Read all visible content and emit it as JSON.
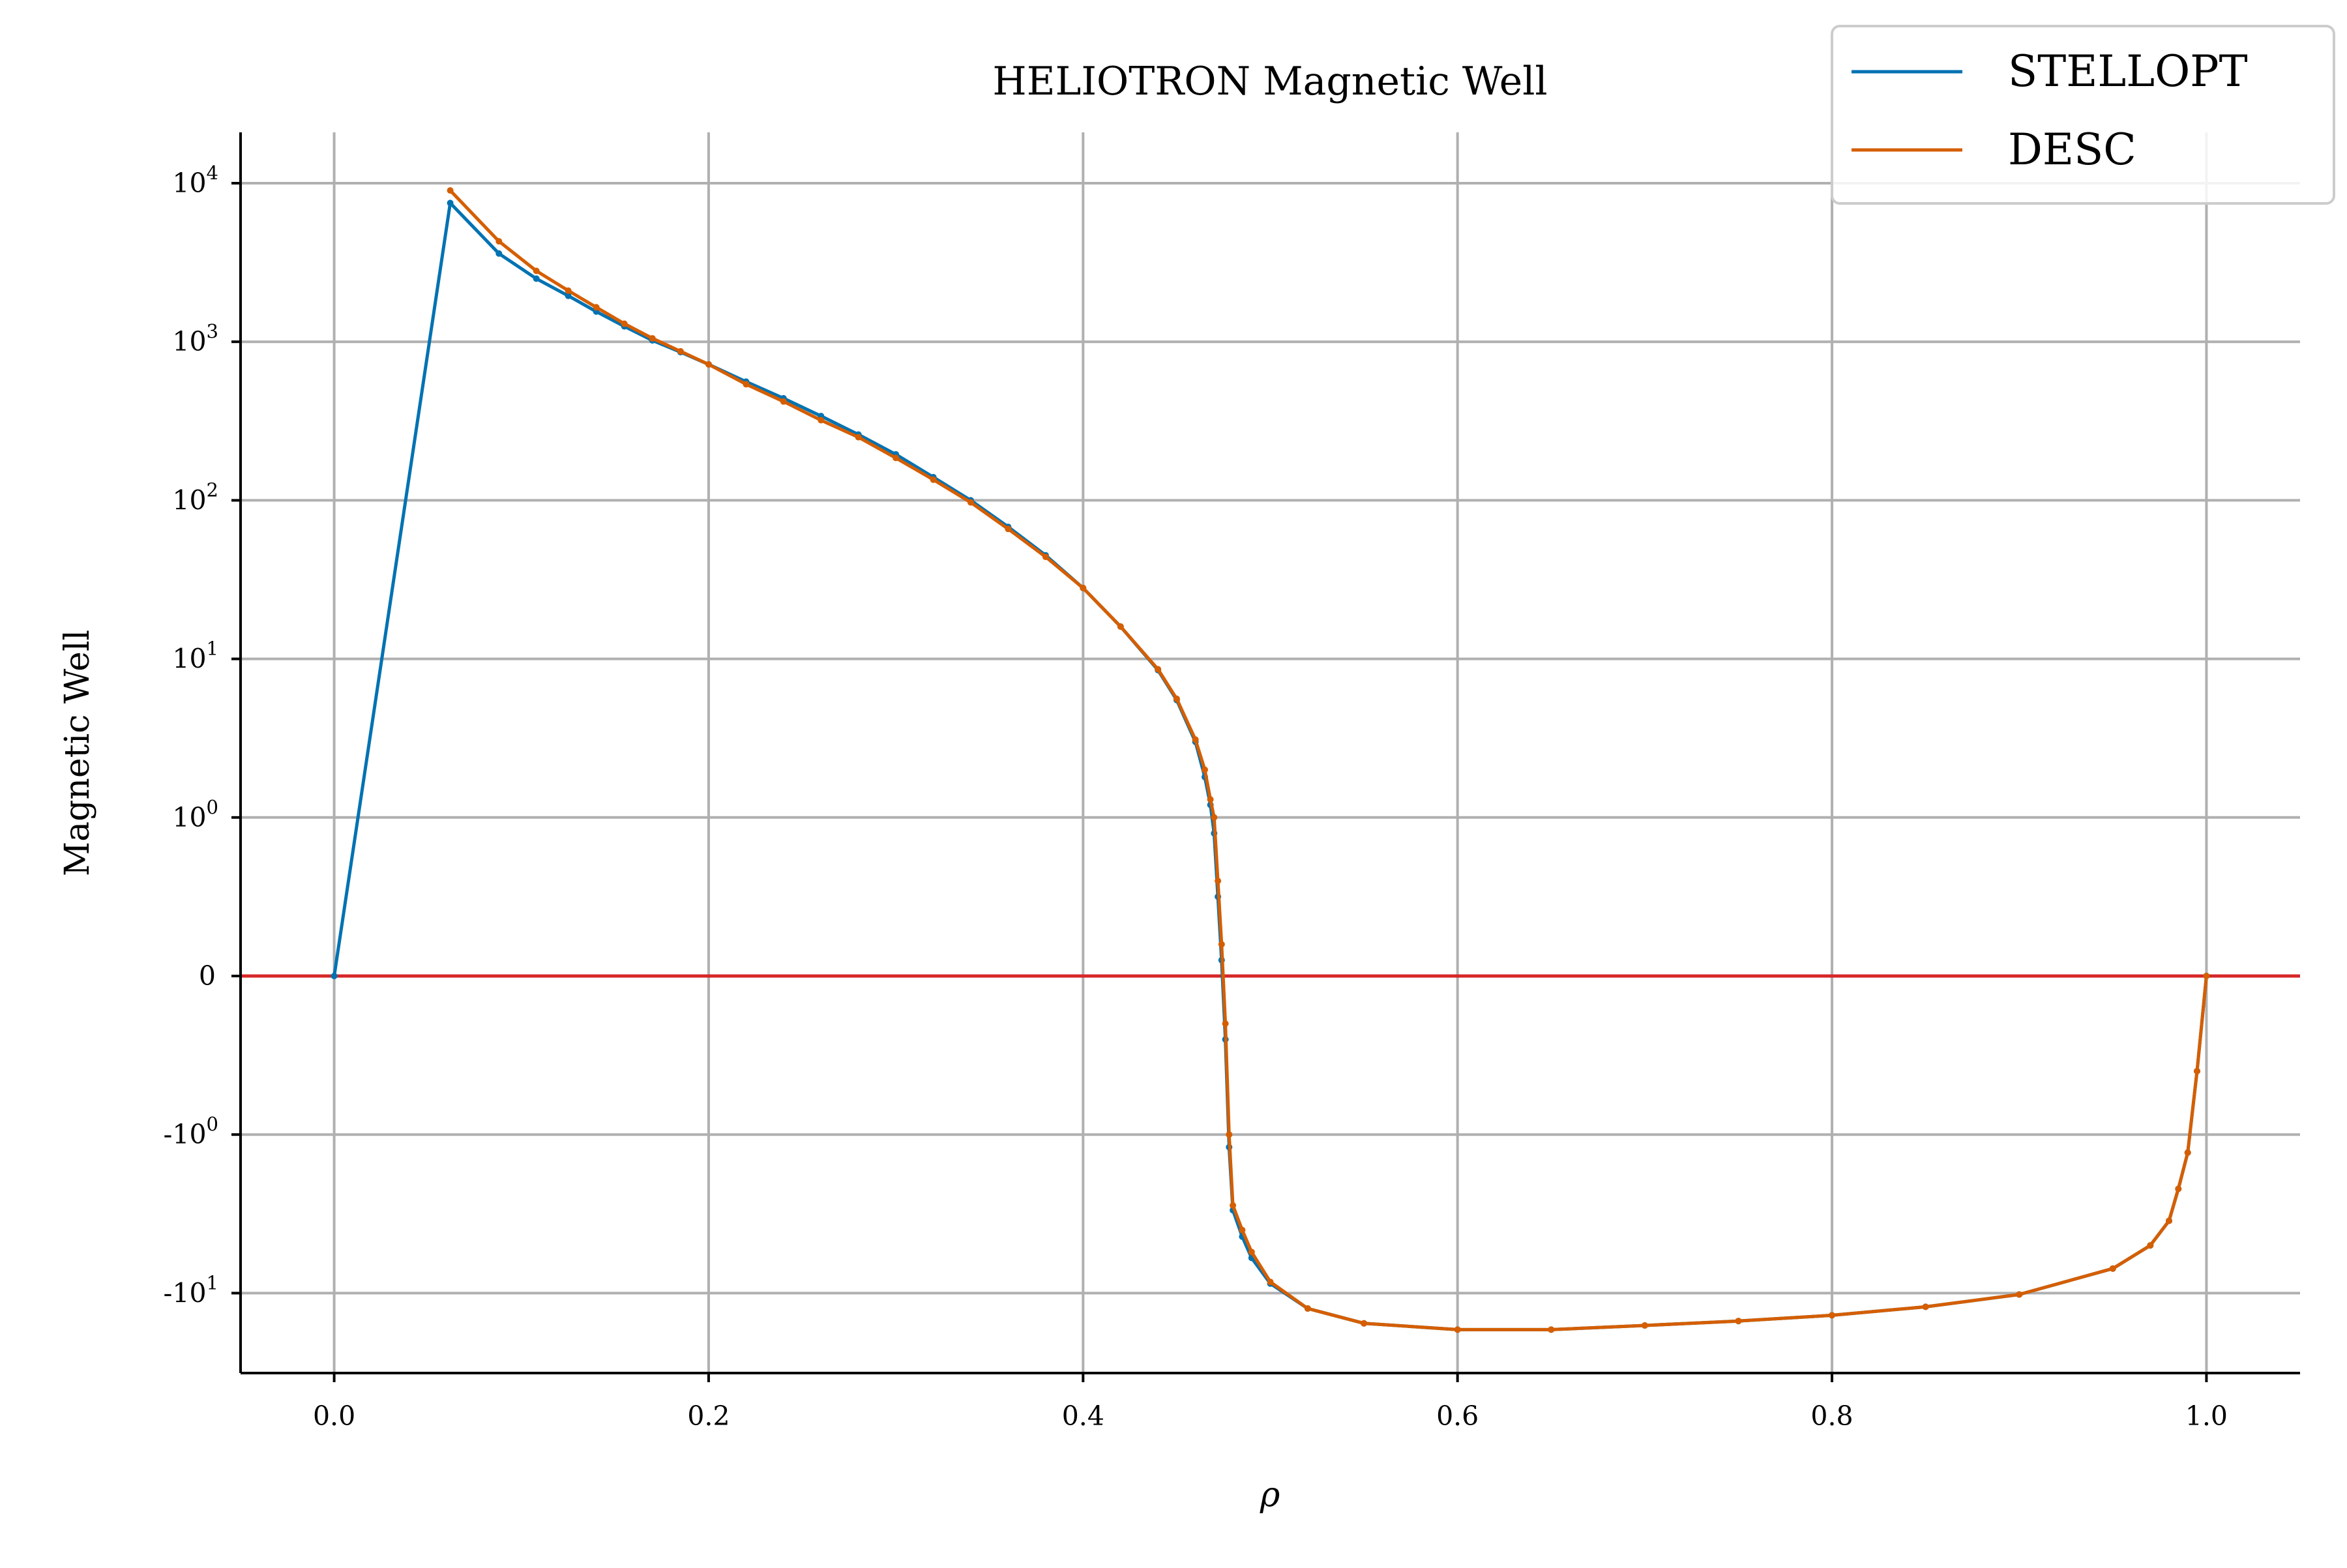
{
  "chart_data": {
    "type": "line",
    "title": "HELIOTRON Magnetic Well",
    "xlabel": "ρ",
    "ylabel": "Magnetic Well",
    "xlim": [
      -0.05,
      1.05
    ],
    "yscale": "symlog",
    "symlog_linthresh": 1,
    "grid": true,
    "legend_position": "top-right",
    "x_ticks": [
      {
        "value": 0.0,
        "label": "0.0"
      },
      {
        "value": 0.2,
        "label": "0.2"
      },
      {
        "value": 0.4,
        "label": "0.4"
      },
      {
        "value": 0.6,
        "label": "0.6"
      },
      {
        "value": 0.8,
        "label": "0.8"
      },
      {
        "value": 1.0,
        "label": "1.0"
      }
    ],
    "y_ticks": [
      {
        "value": 10000,
        "base": "10",
        "exp": "4"
      },
      {
        "value": 1000,
        "base": "10",
        "exp": "3"
      },
      {
        "value": 100,
        "base": "10",
        "exp": "2"
      },
      {
        "value": 10,
        "base": "10",
        "exp": "1"
      },
      {
        "value": 1,
        "base": "10",
        "exp": "0"
      },
      {
        "value": 0,
        "base": "0",
        "exp": ""
      },
      {
        "value": -1,
        "base": "-10",
        "exp": "0"
      },
      {
        "value": -10,
        "base": "-10",
        "exp": "1"
      }
    ],
    "zero_line_color": "#d62728",
    "series": [
      {
        "name": "STELLOPT",
        "color": "#0072b2",
        "x": [
          0.0,
          0.062,
          0.088,
          0.108,
          0.125,
          0.14,
          0.155,
          0.17,
          0.185,
          0.2,
          0.22,
          0.24,
          0.26,
          0.28,
          0.3,
          0.32,
          0.34,
          0.36,
          0.38,
          0.4,
          0.42,
          0.44,
          0.45,
          0.46,
          0.465,
          0.468,
          0.47,
          0.472,
          0.474,
          0.476,
          0.478,
          0.48,
          0.485,
          0.49,
          0.5,
          0.52,
          0.55,
          0.6,
          0.65,
          0.7,
          0.75,
          0.8,
          0.85,
          0.9,
          0.95,
          0.97,
          0.98,
          0.985,
          0.99,
          0.995,
          1.0
        ],
        "y": [
          0.0,
          7500,
          3600,
          2500,
          1950,
          1550,
          1250,
          1020,
          860,
          720,
          560,
          440,
          340,
          260,
          195,
          140,
          100,
          68,
          45,
          28,
          16,
          8.5,
          5.5,
          3.0,
          1.8,
          1.2,
          0.9,
          0.5,
          0.1,
          -0.4,
          -1.2,
          -3.0,
          -4.4,
          -6.0,
          -8.7,
          -12.5,
          -15.5,
          -17.0,
          -17.0,
          -16.0,
          -15.0,
          -13.8,
          -12.2,
          -10.2,
          -7.0,
          -5.0,
          -3.5,
          -2.2,
          -1.3,
          -0.6,
          0.0
        ]
      },
      {
        "name": "DESC",
        "color": "#d55e00",
        "x": [
          0.062,
          0.088,
          0.108,
          0.125,
          0.14,
          0.155,
          0.17,
          0.185,
          0.2,
          0.22,
          0.24,
          0.26,
          0.28,
          0.3,
          0.32,
          0.34,
          0.36,
          0.38,
          0.4,
          0.42,
          0.44,
          0.45,
          0.46,
          0.465,
          0.468,
          0.47,
          0.472,
          0.474,
          0.476,
          0.478,
          0.48,
          0.485,
          0.49,
          0.5,
          0.52,
          0.55,
          0.6,
          0.65,
          0.7,
          0.75,
          0.8,
          0.85,
          0.9,
          0.95,
          0.97,
          0.98,
          0.985,
          0.99,
          0.995,
          1.0
        ],
        "y": [
          9000,
          4300,
          2800,
          2100,
          1650,
          1300,
          1050,
          870,
          720,
          540,
          420,
          320,
          250,
          185,
          135,
          97,
          66,
          44,
          28,
          16,
          8.6,
          5.6,
          3.1,
          2.0,
          1.3,
          1.0,
          0.6,
          0.2,
          -0.3,
          -1.0,
          -2.8,
          -4.0,
          -5.5,
          -8.5,
          -12.5,
          -15.5,
          -17.0,
          -17.0,
          -16.0,
          -15.0,
          -13.8,
          -12.2,
          -10.2,
          -7.0,
          -5.0,
          -3.5,
          -2.2,
          -1.3,
          -0.6,
          0.0
        ]
      }
    ]
  }
}
